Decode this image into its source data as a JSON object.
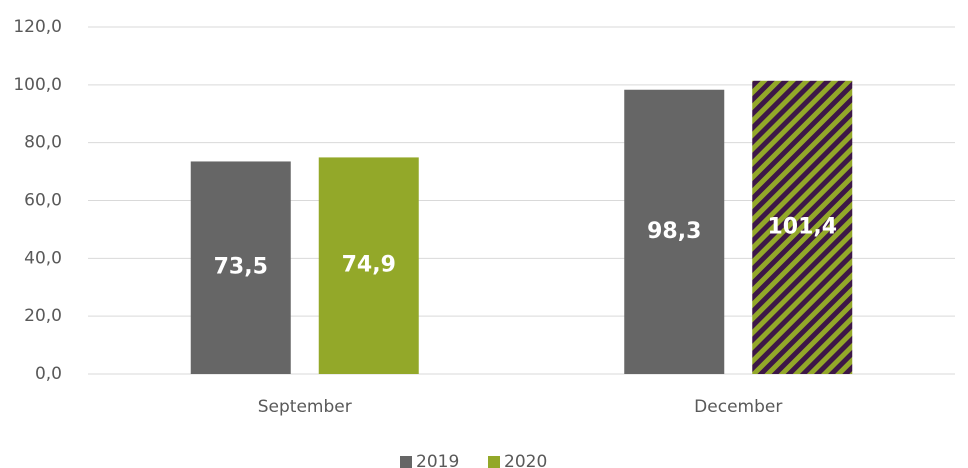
{
  "chart_data": {
    "type": "bar",
    "categories": [
      "September",
      "December"
    ],
    "series": [
      {
        "name": "2019",
        "color": "#666666",
        "values": [
          73.5,
          98.3
        ],
        "value_labels": [
          "73,5",
          "98,3"
        ]
      },
      {
        "name": "2020",
        "color": "#93a829",
        "values": [
          74.9,
          101.4
        ],
        "value_labels": [
          "74,9",
          "101,4"
        ],
        "hatched": [
          false,
          true
        ],
        "hatch_color": "#3d1747"
      }
    ],
    "ylim": [
      0,
      120
    ],
    "yticks": [
      {
        "value": 0,
        "label": "0,0"
      },
      {
        "value": 20,
        "label": "20,0"
      },
      {
        "value": 40,
        "label": "40,0"
      },
      {
        "value": 60,
        "label": "60,0"
      },
      {
        "value": 80,
        "label": "80,0"
      },
      {
        "value": 100,
        "label": "100,0"
      },
      {
        "value": 120,
        "label": "120,0"
      }
    ],
    "grid": true,
    "legend": "bottom"
  }
}
